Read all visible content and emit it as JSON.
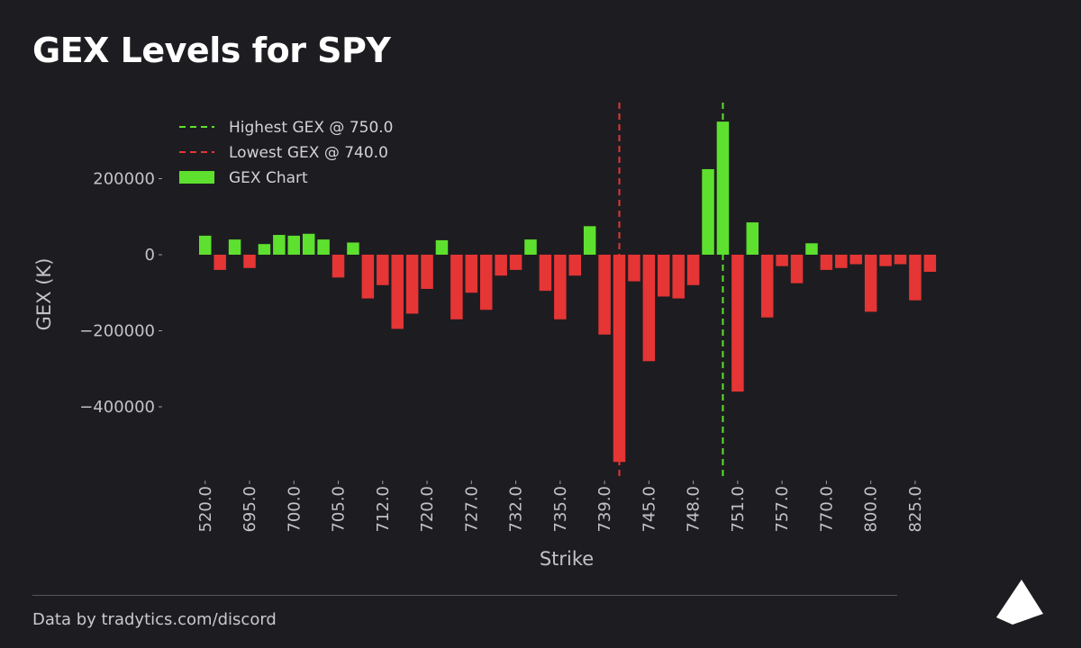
{
  "header": {
    "title": "GEX Levels for SPY"
  },
  "footer": {
    "credit": "Data by tradytics.com/discord"
  },
  "colors": {
    "background": "#1d1d21",
    "positive": "#5ee02e",
    "negative": "#e53535",
    "highest_line": "#5ee02e",
    "lowest_line": "#e53535",
    "text": "#c3c3c7"
  },
  "logo": {
    "icon": "pyramid-logo-icon"
  },
  "chart_data": {
    "type": "bar",
    "xlabel": "Strike",
    "ylabel": "GEX (K)",
    "ylim": [
      -560000,
      380000
    ],
    "yticks": [
      200000,
      0,
      -200000,
      -400000
    ],
    "ytick_labels": [
      "200000",
      "0",
      "−200000",
      "−400000"
    ],
    "xtick_labels": [
      "520.0",
      "695.0",
      "700.0",
      "705.0",
      "712.0",
      "720.0",
      "727.0",
      "732.0",
      "735.0",
      "739.0",
      "745.0",
      "748.0",
      "751.0",
      "757.0",
      "770.0",
      "800.0",
      "825.0"
    ],
    "xtick_indices": [
      0,
      3,
      6,
      9,
      12,
      15,
      18,
      21,
      24,
      27,
      30,
      33,
      36,
      39,
      42,
      45,
      48
    ],
    "grid": false,
    "legend_position": "top-left",
    "legend": [
      {
        "label": "Highest GEX @ 750.0",
        "kind": "dashed-line",
        "color": "#5ee02e"
      },
      {
        "label": "Lowest GEX @ 740.0",
        "kind": "dashed-line",
        "color": "#e53535"
      },
      {
        "label": "GEX Chart",
        "kind": "bar",
        "color": "#5ee02e"
      }
    ],
    "highest": {
      "strike": "750.0",
      "index": 35
    },
    "lowest": {
      "strike": "740.0",
      "index": 28
    },
    "values": [
      50000,
      -40000,
      40000,
      -35000,
      28000,
      52000,
      50000,
      55000,
      40000,
      -60000,
      32000,
      -115000,
      -80000,
      -195000,
      -155000,
      -90000,
      38000,
      -170000,
      -100000,
      -145000,
      -55000,
      -40000,
      40000,
      -95000,
      -170000,
      -55000,
      75000,
      -210000,
      -545000,
      -70000,
      -280000,
      -110000,
      -115000,
      -80000,
      225000,
      350000,
      -360000,
      85000,
      -165000,
      -30000,
      -75000,
      30000,
      -40000,
      -35000,
      -25000,
      -150000,
      -30000,
      -25000,
      -120000,
      -45000
    ]
  }
}
